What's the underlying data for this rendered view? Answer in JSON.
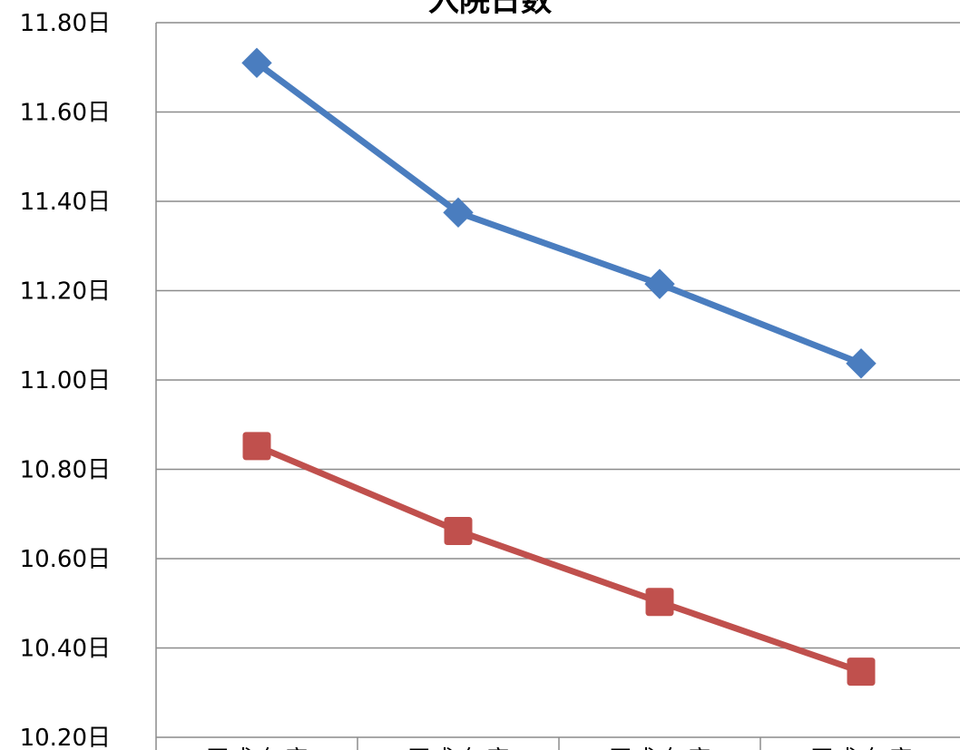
{
  "chart_data": {
    "type": "line",
    "title": "入院日数",
    "xlabel": "",
    "ylabel": "",
    "categories": [
      "平成 年度",
      "平成 年度",
      "平成 年度",
      "平成 年度"
    ],
    "ylim": [
      10.2,
      11.8
    ],
    "yticks": [
      10.2,
      10.4,
      10.6,
      10.8,
      11.0,
      11.2,
      11.4,
      11.6,
      11.8
    ],
    "ytick_labels": [
      "10.20日",
      "10.40日",
      "10.60日",
      "10.80日",
      "11.00日",
      "11.20日",
      "11.40日",
      "11.60日",
      "11.80日"
    ],
    "grid": true,
    "legend": "none",
    "series": [
      {
        "values": [
          11.71,
          11.375,
          11.215,
          11.037
        ],
        "color": "#4a7dbf",
        "marker": "diamond"
      },
      {
        "values": [
          10.852,
          10.662,
          10.503,
          10.347
        ],
        "color": "#c0504d",
        "marker": "square"
      }
    ]
  }
}
